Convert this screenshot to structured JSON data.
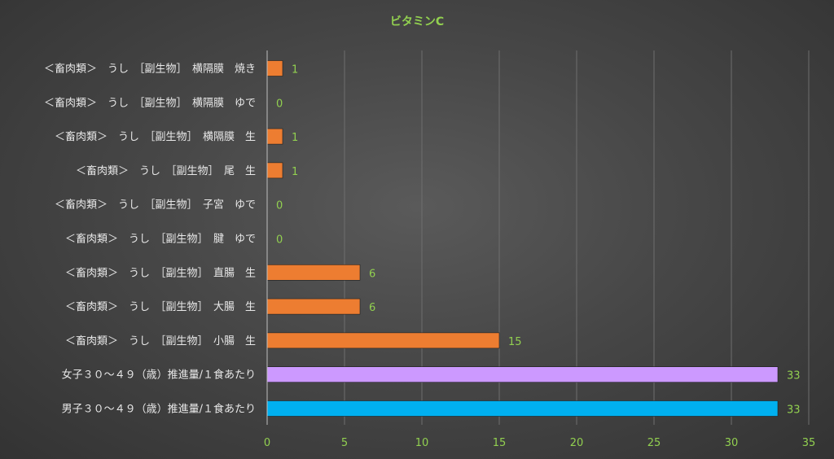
{
  "chart_data": {
    "type": "bar",
    "orientation": "horizontal",
    "title": "ビタミンC",
    "categories": [
      "＜畜肉類＞　うし　［副生物］　横隔膜　焼き",
      "＜畜肉類＞　うし　［副生物］　横隔膜　ゆで",
      "＜畜肉類＞　うし　［副生物］　横隔膜　生",
      "＜畜肉類＞　うし　［副生物］　尾　生",
      "＜畜肉類＞　うし　［副生物］　子宮　ゆで",
      "＜畜肉類＞　うし　［副生物］　腱　ゆで",
      "＜畜肉類＞　うし　［副生物］　直腸　生",
      "＜畜肉類＞　うし　［副生物］　大腸　生",
      "＜畜肉類＞　うし　［副生物］　小腸　生",
      "女子３０～４９（歳）推進量/１食あたり",
      "男子３０～４９（歳）推進量/１食あたり"
    ],
    "values": [
      1,
      0,
      1,
      1,
      0,
      0,
      6,
      6,
      15,
      33,
      33
    ],
    "bar_colors": [
      "#ed7d31",
      "#ed7d31",
      "#ed7d31",
      "#ed7d31",
      "#ed7d31",
      "#ed7d31",
      "#ed7d31",
      "#ed7d31",
      "#ed7d31",
      "#cc99ff",
      "#00b0f0"
    ],
    "xlim": [
      0,
      35
    ],
    "x_ticks": [
      0,
      5,
      10,
      15,
      20,
      25,
      30,
      35
    ],
    "x_tick_labels": [
      "0",
      "5",
      "10",
      "15",
      "20",
      "25",
      "30",
      "35"
    ],
    "grid": true,
    "legend": false,
    "data_labels": true
  },
  "colors": {
    "title": "#92d050",
    "tick_label": "#92d050",
    "data_label": "#92d050",
    "category_label": "#e8e8e8",
    "gridline": "#6e6e6e",
    "axis_line": "#bfbfbf"
  }
}
